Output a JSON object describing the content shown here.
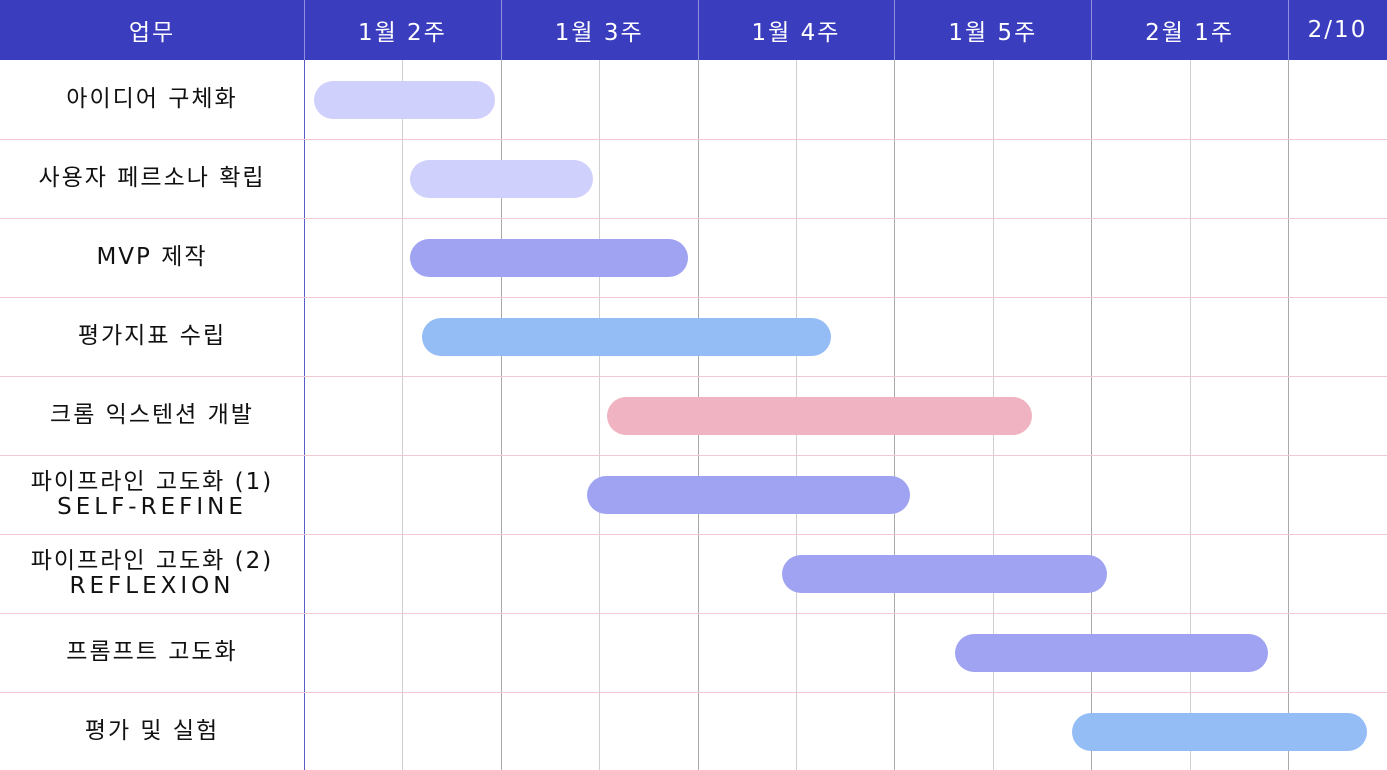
{
  "chart_data": {
    "type": "gantt",
    "label_header": "업무",
    "periods": [
      "1월 2주",
      "1월 3주",
      "1월 4주",
      "1월 5주",
      "2월 1주",
      "2/10"
    ],
    "tasks": [
      {
        "name": "아이디어 구체화",
        "sub": "",
        "start": 0.05,
        "end": 0.97,
        "color": "#d0d0fc"
      },
      {
        "name": "사용자 페르소나 확립",
        "sub": "",
        "start": 0.54,
        "end": 1.47,
        "color": "#d0d0fc"
      },
      {
        "name": "MVP 제작",
        "sub": "",
        "start": 0.54,
        "end": 1.95,
        "color": "#a0a3f2"
      },
      {
        "name": "평가지표 수립",
        "sub": "",
        "start": 0.6,
        "end": 2.68,
        "color": "#94bdf5"
      },
      {
        "name": "크롬 익스텐션 개발",
        "sub": "",
        "start": 1.54,
        "end": 3.7,
        "color": "#f0b3c2"
      },
      {
        "name": "파이프라인 고도화 (1)",
        "sub": "SELF-REFINE",
        "start": 1.44,
        "end": 3.08,
        "color": "#a0a3f2"
      },
      {
        "name": "파이프라인 고도화 (2)",
        "sub": "REFLEXION",
        "start": 2.43,
        "end": 4.08,
        "color": "#a0a3f2"
      },
      {
        "name": "프롬프트 고도화",
        "sub": "",
        "start": 3.31,
        "end": 4.9,
        "color": "#a0a3f2"
      },
      {
        "name": "평가 및 실험",
        "sub": "",
        "start": 3.9,
        "end": 5.4,
        "color": "#94bdf5"
      }
    ],
    "x_unit": "weeks from start of 1월 2주",
    "header_color": "#3b3dbf"
  }
}
